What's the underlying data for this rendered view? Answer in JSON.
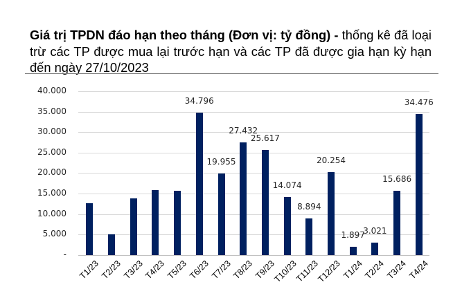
{
  "title": {
    "bold": "Giá trị TPDN đáo hạn theo tháng (Đơn vị: tỷ đồng) -",
    "normal": " thống kê đã loại trừ các TP được mua lại trước hạn và các TP đã được gia hạn kỳ hạn đến ngày 27/10/2023"
  },
  "colors": {
    "bar": "#002060",
    "grid": "#d9d9d9",
    "text": "#262626"
  },
  "chart_data": {
    "type": "bar",
    "title": "Giá trị TPDN đáo hạn theo tháng (Đơn vị: tỷ đồng) - thống kê đã loại trừ các TP được mua lại trước hạn và các TP đã được gia hạn kỳ hạn đến ngày 27/10/2023",
    "xlabel": "",
    "ylabel": "",
    "ylim": [
      0,
      40000
    ],
    "grid": true,
    "legend": null,
    "yticks": [
      {
        "value": 0,
        "label": "-"
      },
      {
        "value": 5000,
        "label": "5.000"
      },
      {
        "value": 10000,
        "label": "10.000"
      },
      {
        "value": 15000,
        "label": "15.000"
      },
      {
        "value": 20000,
        "label": "20.000"
      },
      {
        "value": 25000,
        "label": "25.000"
      },
      {
        "value": 30000,
        "label": "30.000"
      },
      {
        "value": 35000,
        "label": "35.000"
      },
      {
        "value": 40000,
        "label": "40.000"
      }
    ],
    "categories": [
      "T1/23",
      "T2/23",
      "T3/23",
      "T4/23",
      "T5/23",
      "T6/23",
      "T7/23",
      "T8/23",
      "T9/23",
      "T10/23",
      "T11/23",
      "T12/23",
      "T1/24",
      "T2/24",
      "T3/24",
      "T4/24"
    ],
    "values": [
      12600,
      4950,
      13750,
      15750,
      15600,
      34796,
      19955,
      27432,
      25617,
      14074,
      8894,
      20254,
      1897,
      3021,
      15686,
      34476
    ],
    "data_labels": [
      null,
      null,
      null,
      null,
      null,
      "34.796",
      "19.955",
      "27.432",
      "25.617",
      "14.074",
      "8.894",
      "20.254",
      "1.897",
      "3.021",
      "15.686",
      "34.476"
    ]
  }
}
